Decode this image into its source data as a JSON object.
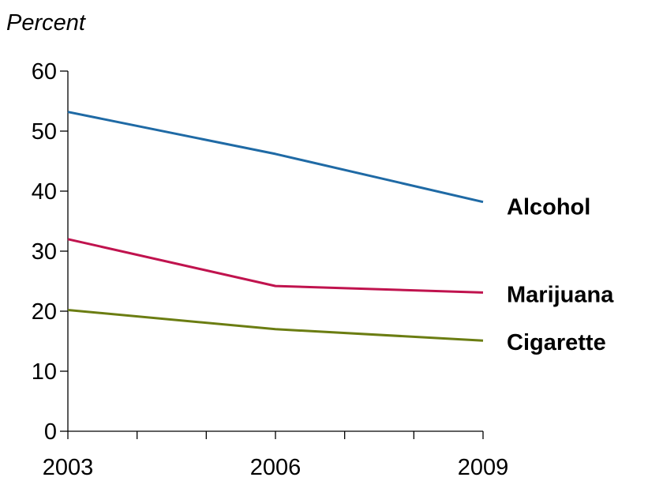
{
  "chart_data": {
    "type": "line",
    "ylabel": "Percent",
    "xlabel": "",
    "x": [
      2003,
      2006,
      2009
    ],
    "x_tick_labels": [
      "2003",
      "2006",
      "2009"
    ],
    "x_minor_ticks": [
      2003,
      2004,
      2005,
      2006,
      2007,
      2008,
      2009
    ],
    "ylim": [
      0,
      60
    ],
    "y_ticks": [
      0,
      10,
      20,
      30,
      40,
      50,
      60
    ],
    "y_tick_labels": [
      "0",
      "10",
      "20",
      "30",
      "40",
      "50",
      "60"
    ],
    "grid": false,
    "legend": "inline-right",
    "series": [
      {
        "name": "Alcohol",
        "values": [
          53.2,
          46.2,
          38.2
        ],
        "color": "#1f6aa5"
      },
      {
        "name": "Marijuana",
        "values": [
          32.0,
          24.2,
          23.1
        ],
        "color": "#c0134e"
      },
      {
        "name": "Cigarette",
        "values": [
          20.2,
          17.0,
          15.1
        ],
        "color": "#6b7d12"
      }
    ]
  }
}
